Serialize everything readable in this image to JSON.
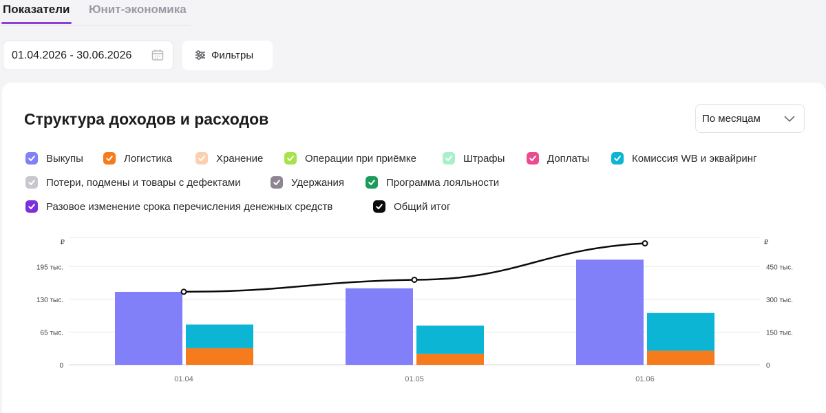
{
  "tabs": [
    {
      "label": "Показатели",
      "active": true
    },
    {
      "label": "Юнит-экономика",
      "active": false
    }
  ],
  "date_range": {
    "value": "01.04.2026 - 30.06.2026",
    "icon": "calendar-icon"
  },
  "filters": {
    "label": "Фильтры",
    "icon": "sliders-icon"
  },
  "card": {
    "title": "Структура доходов и расходов",
    "period_select": {
      "value": "По месяцам",
      "icon": "chevron-down-icon"
    }
  },
  "legend": [
    {
      "label": "Выкупы",
      "color": "#8180f8"
    },
    {
      "label": "Логистика",
      "color": "#f57b1c"
    },
    {
      "label": "Хранение",
      "color": "#fbd0b0"
    },
    {
      "label": "Операции при приёмке",
      "color": "#a6e34a"
    },
    {
      "label": "Штрафы",
      "color": "#a8f0cc"
    },
    {
      "label": "Доплаты",
      "color": "#ea4c8f"
    },
    {
      "label": "Комиссия WB и эквайринг",
      "color": "#0bb5d3"
    },
    {
      "label": "Потери, подмены и товары с дефектами",
      "color": "#c9c6cf"
    },
    {
      "label": "Удержания",
      "color": "#8e8593"
    },
    {
      "label": "Программа лояльности",
      "color": "#1c9c5a"
    },
    {
      "label": "Разовое изменение срока перечисления денежных средств",
      "color": "#7c2fdc"
    },
    {
      "label": "Общий итог",
      "color": "#0b0b0b"
    }
  ],
  "chart_data": {
    "type": "bar",
    "categories": [
      "01.04",
      "01.05",
      "01.06"
    ],
    "y_left": {
      "unit": "₽",
      "ticks": [
        "0",
        "65 тыс.",
        "130 тыс.",
        "195 тыс."
      ],
      "tick_values": [
        0,
        65000,
        130000,
        195000
      ],
      "ylim": [
        0,
        253000
      ]
    },
    "y_right": {
      "unit": "₽",
      "ticks": [
        "0",
        "150 тыс.",
        "300 тыс.",
        "450 тыс."
      ],
      "tick_values": [
        0,
        150000,
        300000,
        450000
      ],
      "ylim": [
        0,
        584000
      ]
    },
    "series": [
      {
        "name": "Выкупы",
        "stack": "income",
        "color": "#8180f8",
        "values": [
          145000,
          152000,
          209000
        ]
      },
      {
        "name": "Логистика",
        "stack": "expense",
        "color": "#f57b1c",
        "values": [
          33000,
          22000,
          28000
        ]
      },
      {
        "name": "Комиссия WB и эквайринг",
        "stack": "expense",
        "color": "#0bb5d3",
        "values": [
          47000,
          56000,
          75000
        ]
      },
      {
        "name": "Общий итог",
        "type": "line",
        "axis": "right",
        "color": "#0b0b0b",
        "values": [
          335000,
          390000,
          557000
        ]
      }
    ],
    "grid": true,
    "legend_position": "top"
  }
}
